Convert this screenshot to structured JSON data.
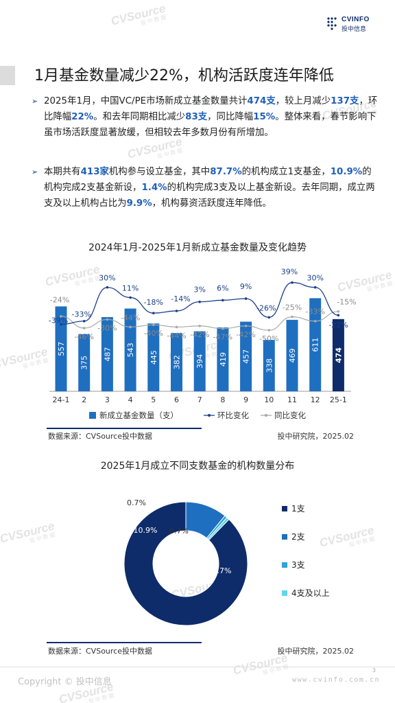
{
  "header": {
    "logo_text": "CVINFO",
    "logo_cn": "投中信息"
  },
  "watermark": {
    "text": "CVSource",
    "sub": "投中数据"
  },
  "title": "1月基金数量减少22%，机构活跃度连年降低",
  "bullets": [
    {
      "segments": [
        {
          "t": "2025年1月，中国VC/PE市场新成立基金数量共计",
          "hl": false
        },
        {
          "t": "474支",
          "hl": true
        },
        {
          "t": "，较上月减少",
          "hl": false
        },
        {
          "t": "137支",
          "hl": true
        },
        {
          "t": "，环比降幅",
          "hl": false
        },
        {
          "t": "22%",
          "hl": true
        },
        {
          "t": "。和去年同期相比减少",
          "hl": false
        },
        {
          "t": "83支",
          "hl": true
        },
        {
          "t": "，同比降幅",
          "hl": false
        },
        {
          "t": "15%",
          "hl": true
        },
        {
          "t": "。整体来看，春节影响下虽市场活跃度显著放缓，但相较去年多数月份有所增加。",
          "hl": false
        }
      ]
    },
    {
      "segments": [
        {
          "t": "本期共有",
          "hl": false
        },
        {
          "t": "413家",
          "hl": true
        },
        {
          "t": "机构参与设立基金，其中",
          "hl": false
        },
        {
          "t": "87.7%",
          "hl": true
        },
        {
          "t": "的机构成立1支基金，",
          "hl": false
        },
        {
          "t": "10.9%",
          "hl": true
        },
        {
          "t": "的机构完成2支基金新设，",
          "hl": false
        },
        {
          "t": "1.4%",
          "hl": true
        },
        {
          "t": "的机构完成3支及以上基金新设。去年同期，成立两支及以上机构占比为",
          "hl": false
        },
        {
          "t": "9.9%",
          "hl": true
        },
        {
          "t": "，机构募资活跃度连年降低。",
          "hl": false
        }
      ]
    }
  ],
  "chart_data": [
    {
      "type": "bar",
      "title": "2024年1月-2025年1月新成立基金数量及变化趋势",
      "categories": [
        "24-1",
        "2",
        "3",
        "4",
        "5",
        "6",
        "7",
        "8",
        "9",
        "10",
        "11",
        "12",
        "25-1"
      ],
      "series": [
        {
          "name": "新成立基金数量（支）",
          "type": "bar",
          "values": [
            557,
            375,
            487,
            543,
            445,
            382,
            394,
            419,
            457,
            338,
            469,
            611,
            474
          ],
          "color": "#1f6fc0",
          "highlight_color": "#0e2c6a"
        },
        {
          "name": "环比变化",
          "type": "line",
          "values": [
            -39,
            -33,
            30,
            11,
            -18,
            -14,
            3,
            6,
            9,
            -26,
            39,
            30,
            -22
          ],
          "labels": [
            "-39%",
            "-33%",
            "30%",
            "11%",
            "-18%",
            "-14%",
            "3%",
            "6%",
            "9%",
            "-26%",
            "39%",
            "30%",
            "-22%"
          ],
          "color": "#1a3f8a"
        },
        {
          "name": "同比变化",
          "type": "line",
          "values": [
            -24,
            -46,
            -30,
            -44,
            -40,
            -44,
            -42,
            -47,
            -42,
            -50,
            -25,
            -33,
            -15
          ],
          "labels": [
            "-24%",
            "-46%",
            "-30%",
            "-44%",
            "-40%",
            "-44%",
            "-42%",
            "-47%",
            "-42%",
            "-50%",
            "-25%",
            "-33%",
            "-15%"
          ],
          "color": "#a9a9a9"
        }
      ],
      "source_left": "数据来源：CVSource投中数据",
      "source_right": "投中研究院，2025.02",
      "legend_position": "bottom"
    },
    {
      "type": "pie",
      "title": "2025年1月成立不同支数基金的机构数量分布",
      "categories": [
        "1支",
        "2支",
        "3支",
        "4支及以上"
      ],
      "values": [
        87.7,
        10.9,
        0.7,
        0.7
      ],
      "labels": [
        "87.7%",
        "10.9%",
        "0.7%",
        "0.7%"
      ],
      "colors": [
        "#0e2c6a",
        "#1f6fc0",
        "#2fa3dc",
        "#5fd6ee"
      ],
      "source_left": "数据来源：CVSource投中数据",
      "source_right": "投中研究院，2025.02",
      "legend_position": "right"
    }
  ],
  "footer": {
    "copyright": "Copyright © 投中信息",
    "website": "www.cvinfo.com.cn",
    "page": "3"
  }
}
